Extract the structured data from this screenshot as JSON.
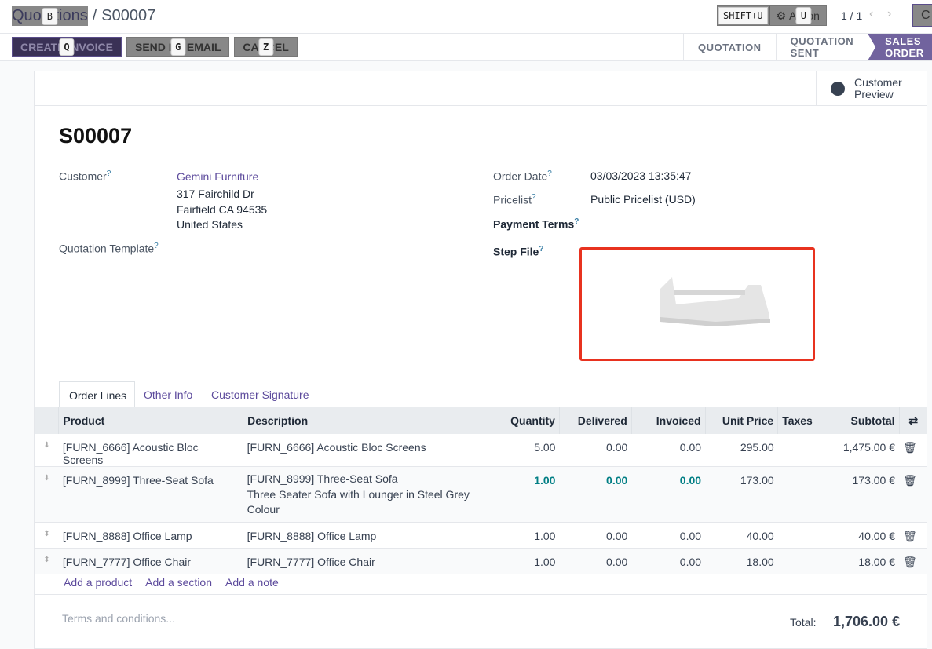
{
  "breadcrumb": {
    "parent": "Quotations",
    "current": "S00007",
    "parent_hint_key": "B"
  },
  "toolbar": {
    "shortcut_hint": "SHIFT+U",
    "action_label": "Action",
    "action_hint_key": "U",
    "pager": "1 / 1",
    "create_label": "C"
  },
  "buttons": [
    {
      "label": "CREATE INVOICE",
      "hint": "Q"
    },
    {
      "label": "SEND BY EMAIL",
      "hint": "G"
    },
    {
      "label": "CANCEL",
      "hint": "Z"
    }
  ],
  "statusbar": [
    "QUOTATION",
    "QUOTATION SENT",
    "SALES ORDER"
  ],
  "customer_preview": "Customer Preview",
  "record": {
    "name": "S00007",
    "customer_label": "Customer",
    "customer": "Gemini Furniture",
    "address": [
      "317 Fairchild Dr",
      "Fairfield CA 94535",
      "United States"
    ],
    "template_label": "Quotation Template",
    "order_date_label": "Order Date",
    "order_date": "03/03/2023 13:35:47",
    "pricelist_label": "Pricelist",
    "pricelist": "Public Pricelist (USD)",
    "payment_terms_label": "Payment Terms",
    "step_file_label": "Step File",
    "help": "?"
  },
  "tabs": [
    "Order Lines",
    "Other Info",
    "Customer Signature"
  ],
  "table": {
    "headers": [
      "Product",
      "Description",
      "Quantity",
      "Delivered",
      "Invoiced",
      "Unit Price",
      "Taxes",
      "Subtotal"
    ],
    "rows": [
      {
        "product": "[FURN_6666] Acoustic Bloc Screens",
        "description": [
          "[FURN_6666] Acoustic Bloc Screens"
        ],
        "quantity": "5.00",
        "delivered": "0.00",
        "invoiced": "0.00",
        "unit_price": "295.00",
        "taxes": "",
        "subtotal": "1,475.00 €"
      },
      {
        "product": "[FURN_8999] Three-Seat Sofa",
        "description": [
          "[FURN_8999] Three-Seat Sofa",
          "Three Seater Sofa with Lounger in Steel Grey",
          "Colour"
        ],
        "quantity": "1.00",
        "delivered": "0.00",
        "invoiced": "0.00",
        "unit_price": "173.00",
        "taxes": "",
        "subtotal": "173.00 €"
      },
      {
        "product": "[FURN_8888] Office Lamp",
        "description": [
          "[FURN_8888] Office Lamp"
        ],
        "quantity": "1.00",
        "delivered": "0.00",
        "invoiced": "0.00",
        "unit_price": "40.00",
        "taxes": "",
        "subtotal": "40.00 €"
      },
      {
        "product": "[FURN_7777] Office Chair",
        "description": [
          "[FURN_7777] Office Chair"
        ],
        "quantity": "1.00",
        "delivered": "0.00",
        "invoiced": "0.00",
        "unit_price": "18.00",
        "taxes": "",
        "subtotal": "18.00 €"
      }
    ],
    "add_links": [
      "Add a product",
      "Add a section",
      "Add a note"
    ]
  },
  "footer": {
    "terms_placeholder": "Terms and conditions...",
    "total_label": "Total:",
    "total": "1,706.00 €"
  }
}
